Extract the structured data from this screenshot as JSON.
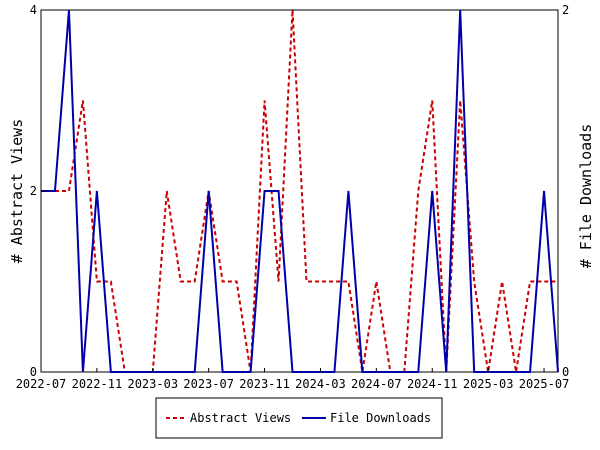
{
  "chart_data": {
    "type": "line",
    "title": "",
    "xlabel": "",
    "ylabel": "# Abstract Views",
    "y2label": "# File Downloads",
    "x": [
      "2022-07",
      "2022-08",
      "2022-09",
      "2022-10",
      "2022-11",
      "2022-12",
      "2023-01",
      "2023-02",
      "2023-03",
      "2023-04",
      "2023-05",
      "2023-06",
      "2023-07",
      "2023-08",
      "2023-09",
      "2023-10",
      "2023-11",
      "2023-12",
      "2024-01",
      "2024-02",
      "2024-03",
      "2024-04",
      "2024-05",
      "2024-06",
      "2024-07",
      "2024-08",
      "2024-09",
      "2024-10",
      "2024-11",
      "2024-12",
      "2025-01",
      "2025-02",
      "2025-03",
      "2025-04",
      "2025-05",
      "2025-06",
      "2025-07",
      "2025-08"
    ],
    "xtick_labels": [
      "2022-07",
      "2022-11",
      "2023-03",
      "2023-07",
      "2023-11",
      "2024-03",
      "2024-07",
      "2024-11",
      "2025-03",
      "2025-07"
    ],
    "xtick_indices": [
      0,
      4,
      8,
      12,
      16,
      20,
      24,
      28,
      32,
      36
    ],
    "ylim": [
      0,
      4
    ],
    "yticks": [
      "0",
      "2",
      "4"
    ],
    "y2lim": [
      0,
      2
    ],
    "y2ticks": [
      "0",
      "2"
    ],
    "grid": false,
    "legend_position": "bottom",
    "series": [
      {
        "name": "Abstract Views",
        "axis": "left",
        "color": "#cc0000",
        "style": "dashed",
        "values": [
          2,
          2,
          2,
          3,
          1,
          1,
          0,
          0,
          0,
          2,
          1,
          1,
          2,
          1,
          1,
          0,
          3,
          1,
          4,
          1,
          1,
          1,
          1,
          0,
          1,
          0,
          0,
          2,
          3,
          0,
          3,
          1,
          0,
          1,
          0,
          1,
          1,
          1
        ]
      },
      {
        "name": "File Downloads",
        "axis": "right",
        "color": "#0000aa",
        "style": "solid",
        "values": [
          1,
          1,
          2,
          0,
          1,
          0,
          0,
          0,
          0,
          0,
          0,
          0,
          1,
          0,
          0,
          0,
          1,
          1,
          0,
          0,
          0,
          0,
          1,
          0,
          0,
          0,
          0,
          0,
          1,
          0,
          2,
          0,
          0,
          0,
          0,
          0,
          1,
          0
        ]
      }
    ]
  }
}
